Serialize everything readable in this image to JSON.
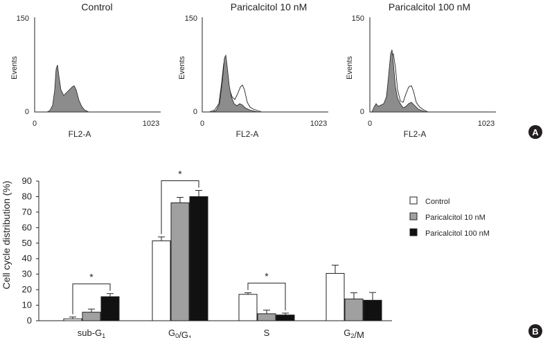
{
  "panel_a": {
    "badge": "A",
    "histograms": [
      {
        "title": "Control",
        "ylabel": "Events",
        "xlabel": "FL2-A",
        "y_max_label": "150",
        "y_min_label": "0",
        "x_min_label": "0",
        "x_max_label": "1023",
        "overlay": false
      },
      {
        "title": "Paricalcitol 10 nM",
        "ylabel": "Events",
        "xlabel": "FL2-A",
        "y_max_label": "150",
        "y_min_label": "0",
        "x_min_label": "0",
        "x_max_label": "1023",
        "overlay": true
      },
      {
        "title": "Paricalcitol 100 nM",
        "ylabel": "Events",
        "xlabel": "FL2-A",
        "y_max_label": "150",
        "y_min_label": "0",
        "x_min_label": "0",
        "x_max_label": "1023",
        "overlay": true
      }
    ]
  },
  "chart_data": {
    "type": "bar",
    "panel_badge": "B",
    "ylabel": "Cell cycle distribution (%)",
    "ylim": [
      0,
      90
    ],
    "yticks": [
      "0",
      "10",
      "20",
      "30",
      "40",
      "50",
      "60",
      "70",
      "80",
      "90"
    ],
    "categories": [
      {
        "base": "sub-G",
        "sub": "1",
        "suffix": ""
      },
      {
        "base": "G",
        "sub": "0",
        "mid": "/G",
        "sub2": "1",
        "suffix": ""
      },
      {
        "base": "S",
        "sub": "",
        "suffix": ""
      },
      {
        "base": "G",
        "sub": "2",
        "suffix": "/M"
      }
    ],
    "series": [
      {
        "name": "Control",
        "color": "#ffffff",
        "values": [
          1.2,
          51.5,
          17,
          30.5
        ],
        "errors": [
          1.2,
          2.5,
          1,
          5.3
        ]
      },
      {
        "name": "Paricalcitol 10 nM",
        "color": "#a0a0a0",
        "values": [
          5.5,
          76,
          4.5,
          14
        ],
        "errors": [
          2,
          3.5,
          2.3,
          4
        ]
      },
      {
        "name": "Paricalcitol 100 nM",
        "color": "#111111",
        "values": [
          15.5,
          80,
          3.7,
          13.2
        ],
        "errors": [
          2,
          4,
          1.2,
          5
        ]
      }
    ],
    "significance": [
      {
        "category_index": 0,
        "label": "*"
      },
      {
        "category_index": 1,
        "label": "*"
      },
      {
        "category_index": 2,
        "label": "*"
      }
    ],
    "legend_position": "right"
  }
}
